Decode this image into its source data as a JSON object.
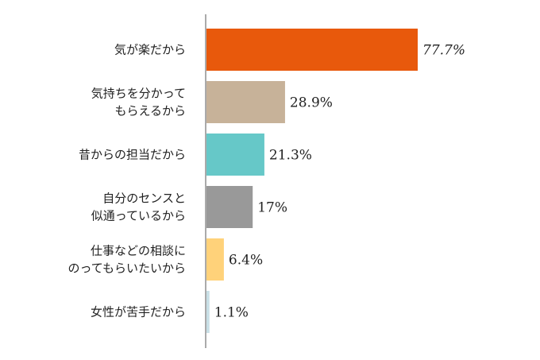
{
  "chart_data": {
    "type": "bar",
    "orientation": "horizontal",
    "categories": [
      [
        "気が楽だから"
      ],
      [
        "気持ちを分かって",
        "もらえるから"
      ],
      [
        "昔からの担当だから"
      ],
      [
        "自分のセンスと",
        "似通っているから"
      ],
      [
        "仕事などの相談に",
        "のってもらいたいから"
      ],
      [
        "女性が苦手だから"
      ]
    ],
    "values": [
      77.7,
      28.9,
      21.3,
      17,
      6.4,
      1.1
    ],
    "value_labels": [
      "77.7%",
      "28.9%",
      "21.3%",
      "17%",
      "6.4%",
      "1.1%"
    ],
    "colors": [
      "#e8590c",
      "#c7b299",
      "#66c8c8",
      "#999999",
      "#ffd27a",
      "#c8dfe6"
    ],
    "xlim": [
      0,
      100
    ],
    "title": "",
    "xlabel": "",
    "ylabel": "",
    "grid": false,
    "legend": "none"
  }
}
